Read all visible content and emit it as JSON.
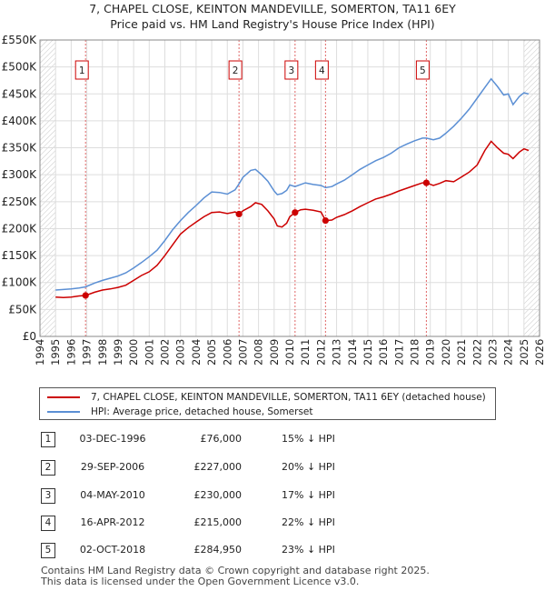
{
  "title_line1": "7, CHAPEL CLOSE, KEINTON MANDEVILLE, SOMERTON, TA11 6EY",
  "title_line2": "Price paid vs. HM Land Registry's House Price Index (HPI)",
  "chart_data": {
    "type": "line",
    "title": "Price paid vs. HM Land Registry's House Price Index (HPI)",
    "xlabel": "",
    "ylabel": "",
    "xlim": [
      1994,
      2026
    ],
    "ylim": [
      0,
      550000
    ],
    "y_ticks": [
      0,
      50000,
      100000,
      150000,
      200000,
      250000,
      300000,
      350000,
      400000,
      450000,
      500000,
      550000
    ],
    "y_tick_labels": [
      "£0",
      "£50K",
      "£100K",
      "£150K",
      "£200K",
      "£250K",
      "£300K",
      "£350K",
      "£400K",
      "£450K",
      "£500K",
      "£550K"
    ],
    "x_ticks": [
      1994,
      1995,
      1996,
      1997,
      1998,
      1999,
      2000,
      2001,
      2002,
      2003,
      2004,
      2005,
      2006,
      2007,
      2008,
      2009,
      2010,
      2011,
      2012,
      2013,
      2014,
      2015,
      2016,
      2017,
      2018,
      2019,
      2020,
      2021,
      2022,
      2023,
      2024,
      2025,
      2026
    ],
    "x_tick_labels": [
      "1994",
      "1995",
      "1996",
      "1997",
      "1998",
      "1999",
      "2000",
      "2001",
      "2002",
      "2003",
      "2004",
      "2005",
      "2006",
      "2007",
      "2008",
      "2009",
      "2010",
      "2011",
      "2012",
      "2013",
      "2014",
      "2015",
      "2016",
      "2017",
      "2018",
      "2019",
      "2020",
      "2021",
      "2022",
      "2023",
      "2024",
      "2025",
      "2026"
    ],
    "series": [
      {
        "name": "7, CHAPEL CLOSE, KEINTON MANDEVILLE, SOMERTON, TA11 6EY (detached house)",
        "color": "#cc0000",
        "x": [
          1995.0,
          1995.5,
          1996.0,
          1996.5,
          1996.92,
          1997.5,
          1998.0,
          1998.5,
          1999.0,
          1999.5,
          2000.0,
          2000.5,
          2001.0,
          2001.5,
          2002.0,
          2002.5,
          2003.0,
          2003.5,
          2004.0,
          2004.5,
          2005.0,
          2005.5,
          2006.0,
          2006.5,
          2006.75,
          2007.0,
          2007.5,
          2007.8,
          2008.2,
          2008.6,
          2009.0,
          2009.2,
          2009.5,
          2009.8,
          2010.0,
          2010.34,
          2010.7,
          2011.0,
          2011.5,
          2012.0,
          2012.29,
          2012.7,
          2013.0,
          2013.5,
          2014.0,
          2014.5,
          2015.0,
          2015.5,
          2016.0,
          2016.5,
          2017.0,
          2017.5,
          2018.0,
          2018.5,
          2018.75,
          2019.2,
          2019.6,
          2020.0,
          2020.5,
          2021.0,
          2021.5,
          2022.0,
          2022.5,
          2022.9,
          2023.3,
          2023.7,
          2024.0,
          2024.3,
          2024.7,
          2025.0,
          2025.3
        ],
        "values": [
          73000,
          72000,
          73000,
          75000,
          76000,
          82000,
          86000,
          88000,
          91000,
          95000,
          104000,
          113000,
          120000,
          132000,
          150000,
          170000,
          190000,
          202000,
          212000,
          222000,
          230000,
          231000,
          228000,
          231000,
          227000,
          233000,
          241000,
          248000,
          245000,
          233000,
          218000,
          205000,
          203000,
          210000,
          222000,
          230000,
          235000,
          236000,
          234000,
          231000,
          215000,
          216000,
          221000,
          226000,
          233000,
          241000,
          248000,
          255000,
          259000,
          264000,
          270000,
          275000,
          280000,
          285000,
          284950,
          280000,
          284000,
          289000,
          287000,
          296000,
          305000,
          318000,
          345000,
          362000,
          350000,
          340000,
          338000,
          330000,
          342000,
          348000,
          345000
        ]
      },
      {
        "name": "HPI: Average price, detached house, Somerset",
        "color": "#5b8fd4",
        "x": [
          1995.0,
          1995.5,
          1996.0,
          1996.5,
          1996.92,
          1997.5,
          1998.0,
          1998.5,
          1999.0,
          1999.5,
          2000.0,
          2000.5,
          2001.0,
          2001.5,
          2002.0,
          2002.5,
          2003.0,
          2003.5,
          2004.0,
          2004.5,
          2005.0,
          2005.5,
          2006.0,
          2006.5,
          2006.75,
          2007.0,
          2007.5,
          2007.8,
          2008.2,
          2008.6,
          2009.0,
          2009.2,
          2009.5,
          2009.8,
          2010.0,
          2010.34,
          2010.7,
          2011.0,
          2011.5,
          2012.0,
          2012.29,
          2012.7,
          2013.0,
          2013.5,
          2014.0,
          2014.5,
          2015.0,
          2015.5,
          2016.0,
          2016.5,
          2017.0,
          2017.5,
          2018.0,
          2018.5,
          2018.75,
          2019.2,
          2019.6,
          2020.0,
          2020.5,
          2021.0,
          2021.5,
          2022.0,
          2022.5,
          2022.9,
          2023.3,
          2023.7,
          2024.0,
          2024.3,
          2024.7,
          2025.0,
          2025.3
        ],
        "values": [
          86000,
          87000,
          88000,
          90000,
          92000,
          99000,
          104000,
          108000,
          112000,
          118000,
          127000,
          137000,
          148000,
          160000,
          178000,
          198000,
          215000,
          230000,
          243000,
          257000,
          268000,
          267000,
          264000,
          272000,
          283000,
          295000,
          308000,
          310000,
          300000,
          288000,
          270000,
          263000,
          265000,
          271000,
          281000,
          278000,
          282000,
          285000,
          282000,
          280000,
          276000,
          278000,
          283000,
          290000,
          300000,
          310000,
          318000,
          326000,
          332000,
          340000,
          350000,
          357000,
          363000,
          368000,
          368000,
          365000,
          368000,
          377000,
          390000,
          405000,
          422000,
          442000,
          462000,
          478000,
          464000,
          448000,
          450000,
          430000,
          445000,
          452000,
          450000
        ]
      }
    ],
    "sales": [
      {
        "num": "1",
        "x": 1996.92,
        "price": 76000
      },
      {
        "num": "2",
        "x": 2006.75,
        "price": 227000
      },
      {
        "num": "3",
        "x": 2010.34,
        "price": 230000
      },
      {
        "num": "4",
        "x": 2012.29,
        "price": 215000
      },
      {
        "num": "5",
        "x": 2018.75,
        "price": 284950
      }
    ],
    "hatched_regions": [
      [
        1994,
        1995
      ],
      [
        2025,
        2026
      ]
    ]
  },
  "legend": {
    "red_label": "7, CHAPEL CLOSE, KEINTON MANDEVILLE, SOMERTON, TA11 6EY (detached house)",
    "blue_label": "HPI: Average price, detached house, Somerset",
    "red_color": "#cc0000",
    "blue_color": "#5b8fd4"
  },
  "transactions": [
    {
      "num": "1",
      "date": "03-DEC-1996",
      "price": "£76,000",
      "hpi": "15% ↓ HPI"
    },
    {
      "num": "2",
      "date": "29-SEP-2006",
      "price": "£227,000",
      "hpi": "20% ↓ HPI"
    },
    {
      "num": "3",
      "date": "04-MAY-2010",
      "price": "£230,000",
      "hpi": "17% ↓ HPI"
    },
    {
      "num": "4",
      "date": "16-APR-2012",
      "price": "£215,000",
      "hpi": "22% ↓ HPI"
    },
    {
      "num": "5",
      "date": "02-OCT-2018",
      "price": "£284,950",
      "hpi": "23% ↓ HPI"
    }
  ],
  "footer": {
    "line1": "Contains HM Land Registry data © Crown copyright and database right 2025.",
    "line2": "This data is licensed under the Open Government Licence v3.0."
  }
}
